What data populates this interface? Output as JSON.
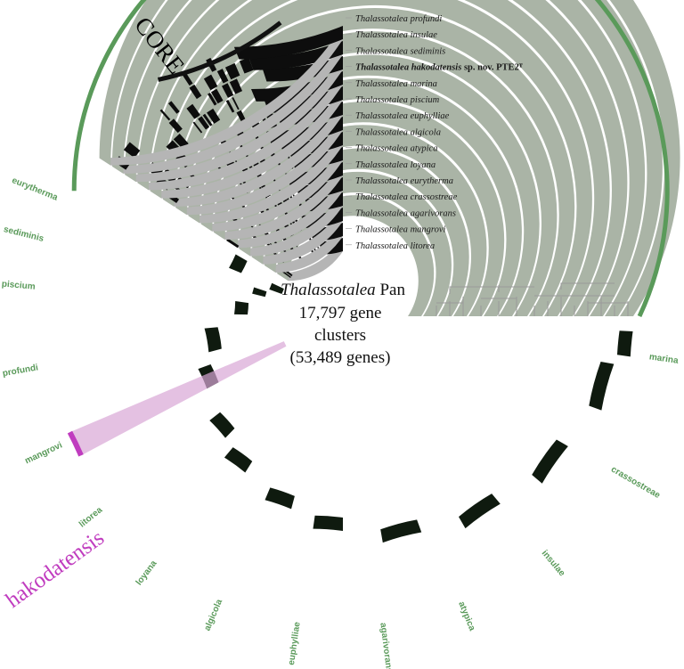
{
  "legend": [
    {
      "genus": "Thalassotalea",
      "species": "profundi",
      "suffix": "",
      "bold": false
    },
    {
      "genus": "Thalassotalea",
      "species": "insulae",
      "suffix": "",
      "bold": false
    },
    {
      "genus": "Thalassotalea",
      "species": "sediminis",
      "suffix": "",
      "bold": false
    },
    {
      "genus": "Thalassotalea",
      "species": "hakodatensis",
      "suffix": " sp. nov. PTE2ᵀ",
      "bold": true
    },
    {
      "genus": "Thalassotalea",
      "species": "marina",
      "suffix": "",
      "bold": false
    },
    {
      "genus": "Thalassotalea",
      "species": "piscium",
      "suffix": "",
      "bold": false
    },
    {
      "genus": "Thalassotalea",
      "species": "euphylliae",
      "suffix": "",
      "bold": false
    },
    {
      "genus": "Thalassotalea",
      "species": "algicola",
      "suffix": "",
      "bold": false
    },
    {
      "genus": "Thalassotalea",
      "species": "atypica",
      "suffix": "",
      "bold": false
    },
    {
      "genus": "Thalassotalea",
      "species": "loyana",
      "suffix": "",
      "bold": false
    },
    {
      "genus": "Thalassotalea",
      "species": "eurytherma",
      "suffix": "",
      "bold": false
    },
    {
      "genus": "Thalassotalea",
      "species": "crassostreae",
      "suffix": "",
      "bold": false
    },
    {
      "genus": "Thalassotalea",
      "species": "agarivorans",
      "suffix": "",
      "bold": false
    },
    {
      "genus": "Thalassotalea",
      "species": "mangrovi",
      "suffix": "",
      "bold": false
    },
    {
      "genus": "Thalassotalea",
      "species": "litorea",
      "suffix": "",
      "bold": false
    }
  ],
  "center": {
    "line1_italic": "Thalassotalea",
    "line1_rest": " Pan",
    "line2": "17,797 gene",
    "line3": "clusters",
    "line4": "(53,489 genes)"
  },
  "core_label": "CORE",
  "hakodatensis_label": "hakodatensis",
  "singleton_labels": [
    "eurytherma",
    "sediminis",
    "piscium",
    "profundi",
    "mangrovi",
    "litorea",
    "loyana",
    "algicola",
    "euphylliae",
    "agarivorans",
    "atypica",
    "insulae",
    "crassostreae",
    "marina"
  ],
  "colors": {
    "ring_gray": "#b5b5b5",
    "singleton_gray": "#aab4a6",
    "presence": "#0d0d0d",
    "singleton_presence": "#0f1a0f",
    "green_arc": "#5a9a5a",
    "green_text": "#5a9a5a",
    "magenta": "#c03cbf",
    "pink_band": "#d9a6d6"
  }
}
